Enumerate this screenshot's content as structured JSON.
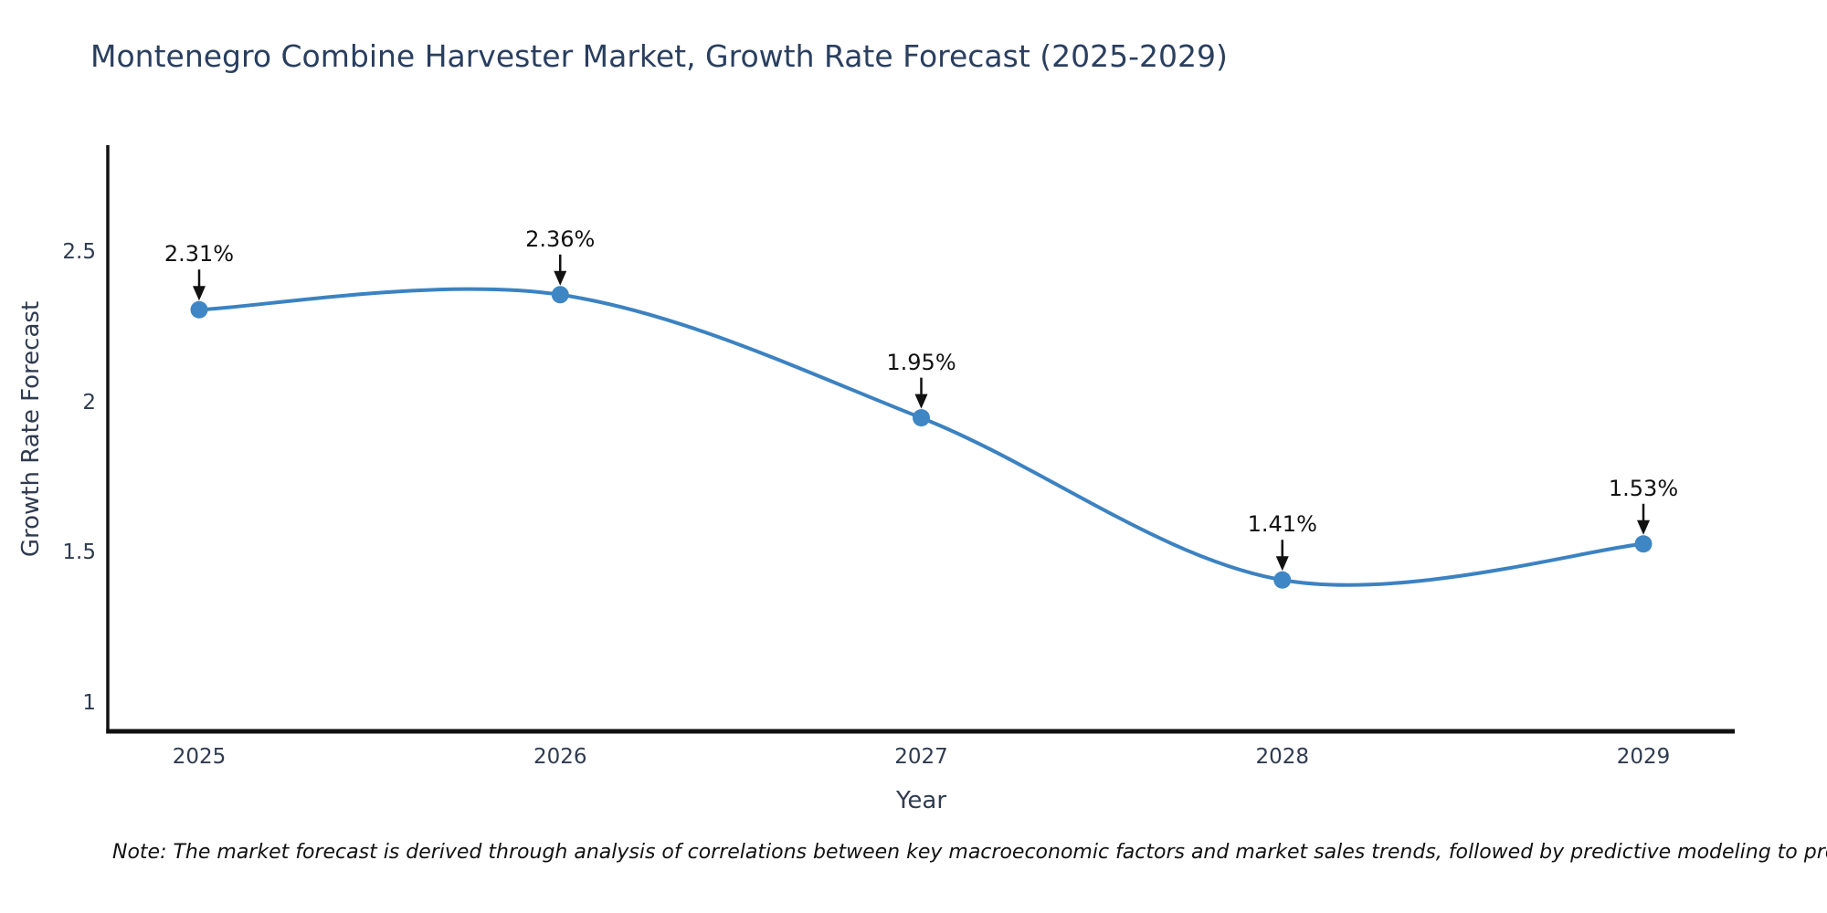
{
  "title": "Montenegro Combine Harvester Market, Growth Rate Forecast (2025-2029)",
  "note": "Note: The market forecast is derived through analysis of correlations between key macroeconomic factors and market sales trends, followed by predictive modeling to project future sales",
  "colors": {
    "line": "#3c82c1",
    "marker": "#3f86c4",
    "axis_line": "#111111",
    "title_text": "#2a3f5f",
    "axis_text": "#2f3b50",
    "annotation": "#111111",
    "background": "#ffffff"
  },
  "chart_data": {
    "type": "line",
    "title": "Montenegro Combine Harvester Market, Growth Rate Forecast (2025-2029)",
    "xlabel": "Year",
    "ylabel": "Growth Rate Forecast",
    "line_shape": "spline",
    "grid": false,
    "legend_visible": false,
    "x": [
      2025,
      2026,
      2027,
      2028,
      2029
    ],
    "series": [
      {
        "name": "Growth Rate Forecast",
        "values": [
          2.31,
          2.36,
          1.95,
          1.41,
          1.53
        ],
        "point_labels": [
          "2.31%",
          "2.36%",
          "1.95%",
          "1.41%",
          "1.53%"
        ]
      }
    ],
    "xticks": [
      {
        "value": 2025,
        "label": "2025"
      },
      {
        "value": 2026,
        "label": "2026"
      },
      {
        "value": 2027,
        "label": "2027"
      },
      {
        "value": 2028,
        "label": "2028"
      },
      {
        "value": 2029,
        "label": "2029"
      }
    ],
    "yticks": [
      {
        "value": 1,
        "label": "1"
      },
      {
        "value": 1.5,
        "label": "1.5"
      },
      {
        "value": 2,
        "label": "2"
      },
      {
        "value": 2.5,
        "label": "2.5"
      }
    ],
    "xlim": [
      2024.747,
      2029.253
    ],
    "ylim": [
      0.906,
      2.858
    ]
  }
}
